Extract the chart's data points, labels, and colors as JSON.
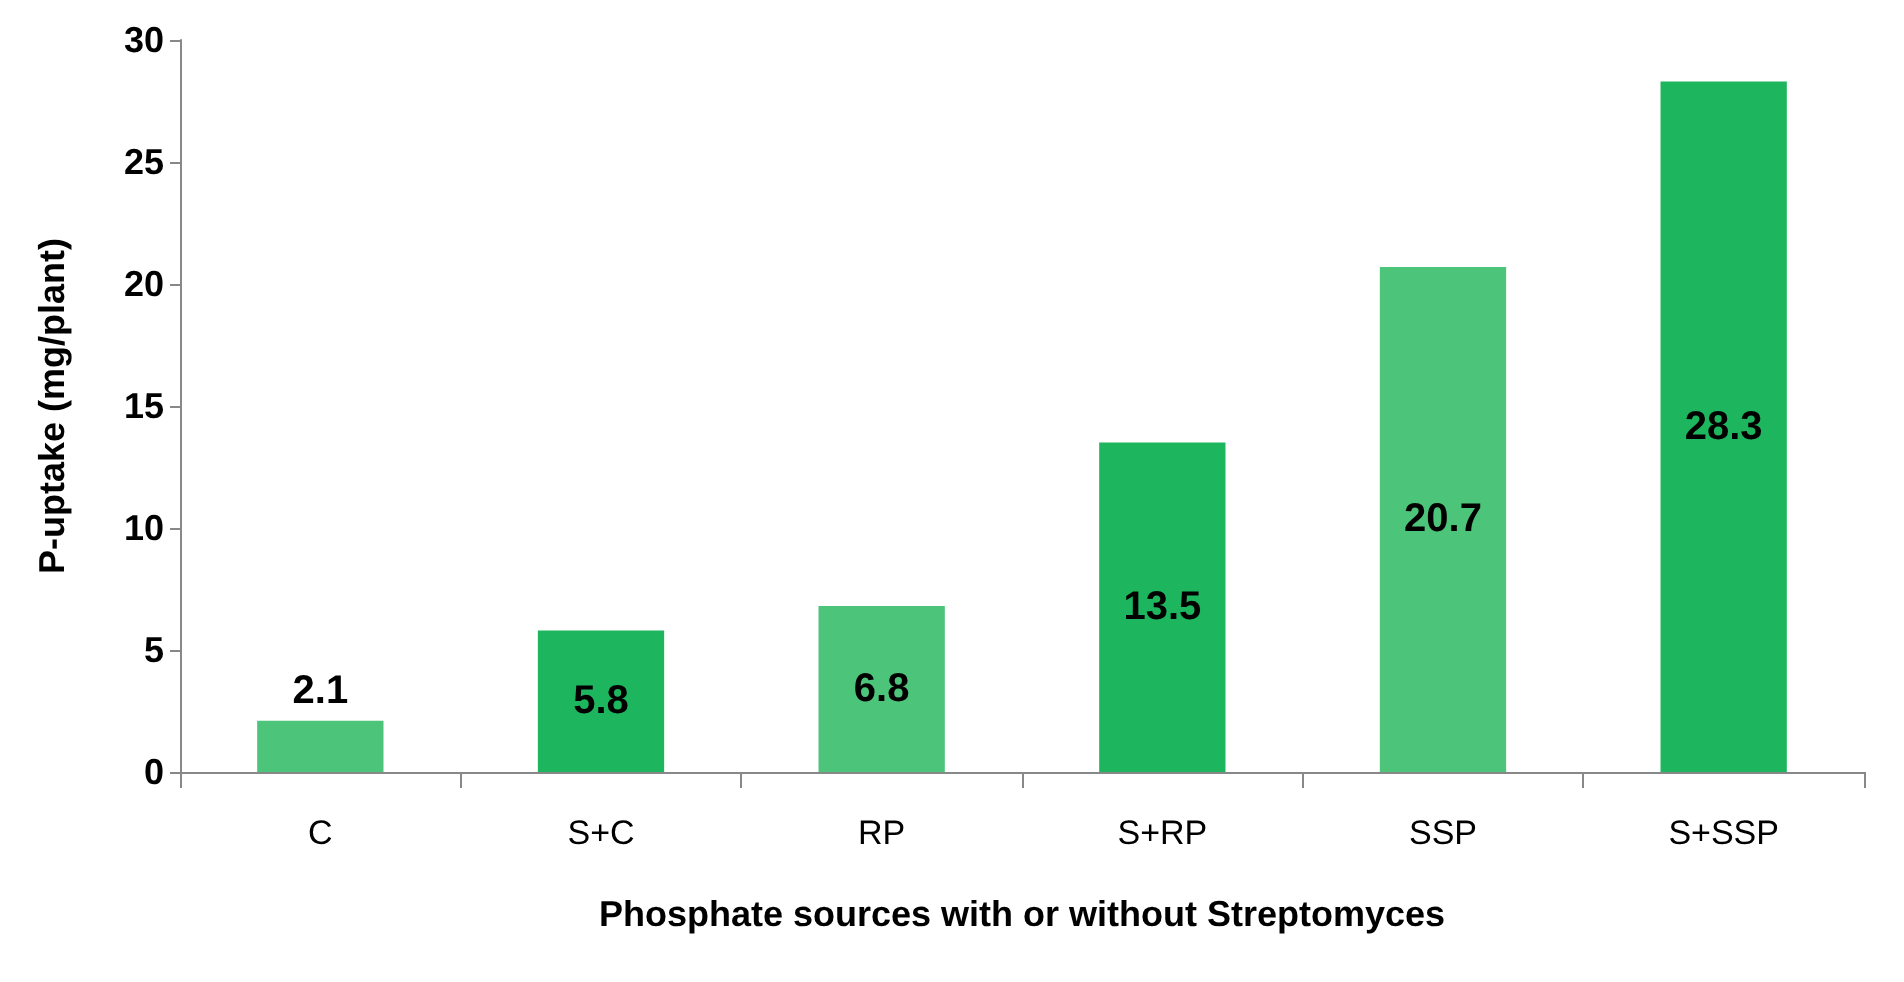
{
  "chart_data": {
    "type": "bar",
    "xlabel": "Phosphate sources with or without Streptomyces",
    "ylabel": "P-uptake (mg/plant)",
    "categories": [
      "C",
      "S+C",
      "RP",
      "S+RP",
      "SSP",
      "S+SSP"
    ],
    "values": [
      2.1,
      5.8,
      6.8,
      13.5,
      20.7,
      28.3
    ],
    "colors": [
      "#4cc47a",
      "#1db55e",
      "#4cc47a",
      "#1db55e",
      "#4cc47a",
      "#1db55e"
    ],
    "ylim": [
      0,
      30
    ],
    "yticks": [
      0,
      5,
      10,
      15,
      20,
      25,
      30
    ],
    "grid": false,
    "data_labels": true
  }
}
